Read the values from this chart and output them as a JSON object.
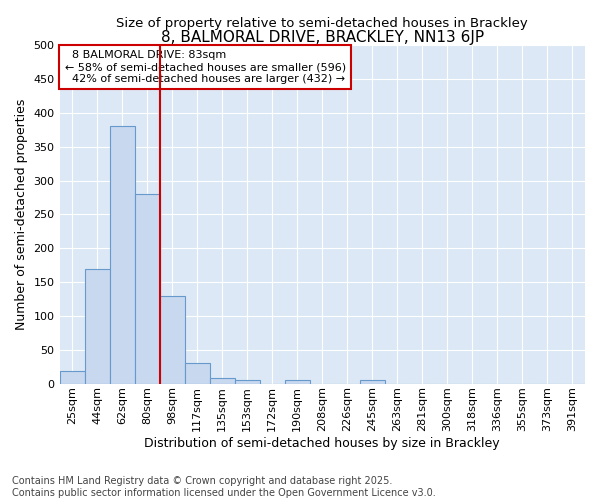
{
  "title": "8, BALMORAL DRIVE, BRACKLEY, NN13 6JP",
  "subtitle": "Size of property relative to semi-detached houses in Brackley",
  "xlabel": "Distribution of semi-detached houses by size in Brackley",
  "ylabel": "Number of semi-detached properties",
  "bin_labels": [
    "25sqm",
    "44sqm",
    "62sqm",
    "80sqm",
    "98sqm",
    "117sqm",
    "135sqm",
    "153sqm",
    "172sqm",
    "190sqm",
    "208sqm",
    "226sqm",
    "245sqm",
    "263sqm",
    "281sqm",
    "300sqm",
    "318sqm",
    "336sqm",
    "355sqm",
    "373sqm",
    "391sqm"
  ],
  "bar_values": [
    18,
    170,
    381,
    281,
    130,
    30,
    9,
    6,
    0,
    6,
    0,
    0,
    5,
    0,
    0,
    0,
    0,
    0,
    0,
    0,
    0
  ],
  "bar_color": "#c8d8ef",
  "bar_edge_color": "#6699cc",
  "property_size_label": "8 BALMORAL DRIVE: 83sqm",
  "pct_smaller": 58,
  "n_smaller": 596,
  "pct_larger": 42,
  "n_larger": 432,
  "vline_color": "#cc0000",
  "annotation_box_color": "#cc0000",
  "ylim": [
    0,
    500
  ],
  "yticks": [
    0,
    50,
    100,
    150,
    200,
    250,
    300,
    350,
    400,
    450,
    500
  ],
  "fig_bg_color": "#ffffff",
  "plot_bg_color": "#dce8f5",
  "grid_color": "#ffffff",
  "title_fontsize": 11,
  "subtitle_fontsize": 9.5,
  "axis_label_fontsize": 9,
  "tick_fontsize": 8,
  "footnote_fontsize": 7,
  "footnote": "Contains HM Land Registry data © Crown copyright and database right 2025.\nContains public sector information licensed under the Open Government Licence v3.0."
}
